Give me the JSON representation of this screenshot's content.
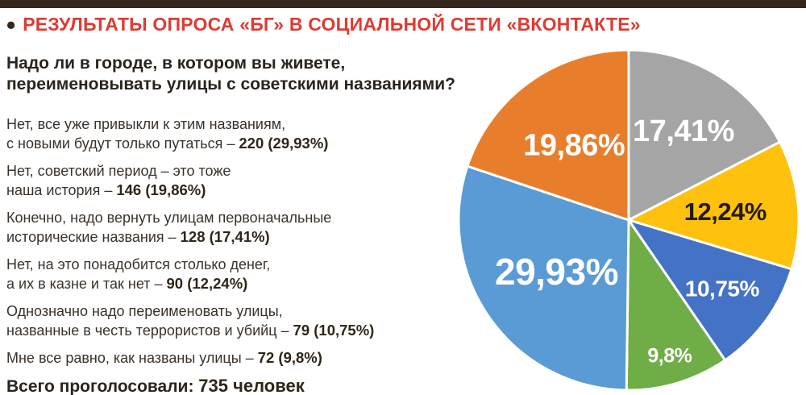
{
  "header": {
    "bullet": "•",
    "title": "РЕЗУЛЬТАТЫ ОПРОСА «БГ» В СОЦИАЛЬНОЙ СЕТИ «ВКОНТАКТЕ»",
    "title_color": "#e03a31"
  },
  "question": {
    "line1": "Надо ли в городе, в котором вы живете,",
    "line2": "переименовывать улицы с советскими названиями?"
  },
  "answers": [
    {
      "line1": "Нет, все уже привыкли к этим названиям,",
      "line2": "с новыми будут только путаться – ",
      "value": "220 (29,93%)"
    },
    {
      "line1": "Нет, советский период – это тоже",
      "line2": "наша история – ",
      "value": "146 (19,86%)"
    },
    {
      "line1": "Конечно, надо вернуть улицам первоначальные",
      "line2": "исторические названия – ",
      "value": "128 (17,41%)"
    },
    {
      "line1": "Нет, на это понадобится столько денег,",
      "line2": "а их в казне и так нет – ",
      "value": "90 (12,24%)"
    },
    {
      "line1": "Однозначно надо переименовать улицы,",
      "line2": "названные в честь террористов и убийц – ",
      "value": "79 (10,75%)"
    },
    {
      "line1": "",
      "line2": "Мне все равно, как названы улицы – ",
      "value": "72 (9,8%)"
    }
  ],
  "total": {
    "label": "Всего проголосовали: ",
    "value": "735 человек"
  },
  "chart_data": {
    "type": "pie",
    "start_angle_deg": 0,
    "direction": "clockwise",
    "legend_position": "none",
    "slices": [
      {
        "label": "17,41%",
        "value": 17.41,
        "count": 128,
        "color": "#a5a5a5",
        "label_color": "#ffffff"
      },
      {
        "label": "12,24%",
        "value": 12.24,
        "count": 90,
        "color": "#fec10d",
        "label_color": "#231a10"
      },
      {
        "label": "10,75%",
        "value": 10.75,
        "count": 79,
        "color": "#4472c4",
        "label_color": "#ffffff"
      },
      {
        "label": "9,8%",
        "value": 9.8,
        "count": 72,
        "color": "#6fad47",
        "label_color": "#ffffff"
      },
      {
        "label": "29,93%",
        "value": 29.93,
        "count": 220,
        "color": "#5b9bd5",
        "label_color": "#ffffff"
      },
      {
        "label": "19,86%",
        "value": 19.86,
        "count": 146,
        "color": "#e87e2b",
        "label_color": "#ffffff"
      }
    ]
  }
}
